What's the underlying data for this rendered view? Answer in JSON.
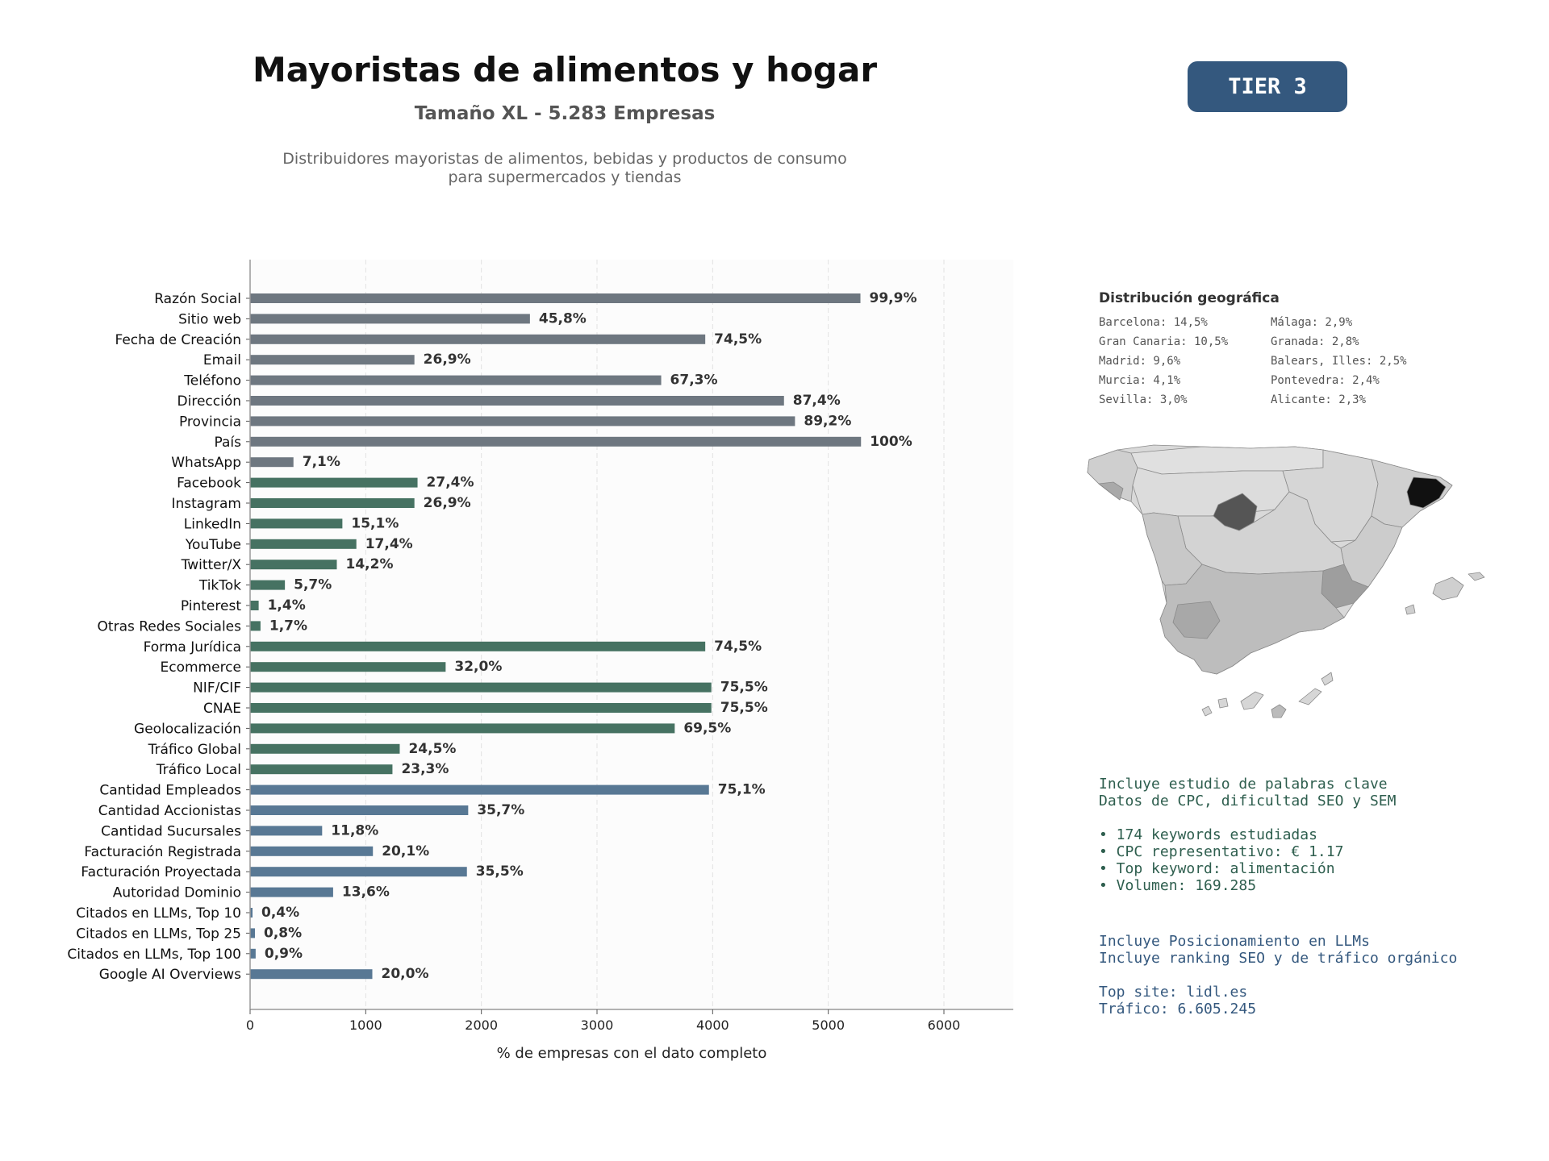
{
  "header": {
    "title": "Mayoristas de alimentos y hogar",
    "subtitle": "Tamaño XL - 5.283 Empresas",
    "description_line1": "Distribuidores mayoristas de alimentos, bebidas y productos de consumo",
    "description_line2": "para supermercados y tiendas",
    "tier_badge": "TIER 3"
  },
  "colors": {
    "gray_bar": "#6e7780",
    "green_bar": "#467262",
    "blue_bar": "#587894",
    "badge_bg": "#34587e",
    "green_text": "#2e5e4e",
    "blue_text": "#34587e"
  },
  "chart_data": {
    "type": "bar",
    "orientation": "horizontal",
    "xlabel": "% de empresas con el dato completo",
    "ylabel": "",
    "xlim": [
      0,
      6600
    ],
    "xticks": [
      0,
      1000,
      2000,
      3000,
      4000,
      5000,
      6000
    ],
    "grid": "vertical dashed",
    "bars": [
      {
        "label": "Razón Social",
        "value": 5278,
        "pct": "99,9%",
        "group": "gray"
      },
      {
        "label": "Sitio web",
        "value": 2420,
        "pct": "45,8%",
        "group": "gray"
      },
      {
        "label": "Fecha de Creación",
        "value": 3936,
        "pct": "74,5%",
        "group": "gray"
      },
      {
        "label": "Email",
        "value": 1421,
        "pct": "26,9%",
        "group": "gray"
      },
      {
        "label": "Teléfono",
        "value": 3555,
        "pct": "67,3%",
        "group": "gray"
      },
      {
        "label": "Dirección",
        "value": 4617,
        "pct": "87,4%",
        "group": "gray"
      },
      {
        "label": "Provincia",
        "value": 4712,
        "pct": "89,2%",
        "group": "gray"
      },
      {
        "label": "País",
        "value": 5283,
        "pct": "100%",
        "group": "gray"
      },
      {
        "label": "WhatsApp",
        "value": 375,
        "pct": "7,1%",
        "group": "gray"
      },
      {
        "label": "Facebook",
        "value": 1448,
        "pct": "27,4%",
        "group": "green"
      },
      {
        "label": "Instagram",
        "value": 1421,
        "pct": "26,9%",
        "group": "green"
      },
      {
        "label": "LinkedIn",
        "value": 798,
        "pct": "15,1%",
        "group": "green"
      },
      {
        "label": "YouTube",
        "value": 919,
        "pct": "17,4%",
        "group": "green"
      },
      {
        "label": "Twitter/X",
        "value": 750,
        "pct": "14,2%",
        "group": "green"
      },
      {
        "label": "TikTok",
        "value": 301,
        "pct": "5,7%",
        "group": "green"
      },
      {
        "label": "Pinterest",
        "value": 74,
        "pct": "1,4%",
        "group": "green"
      },
      {
        "label": "Otras Redes Sociales",
        "value": 90,
        "pct": "1,7%",
        "group": "green"
      },
      {
        "label": "Forma Jurídica",
        "value": 3936,
        "pct": "74,5%",
        "group": "green"
      },
      {
        "label": "Ecommerce",
        "value": 1691,
        "pct": "32,0%",
        "group": "green"
      },
      {
        "label": "NIF/CIF",
        "value": 3989,
        "pct": "75,5%",
        "group": "green"
      },
      {
        "label": "CNAE",
        "value": 3989,
        "pct": "75,5%",
        "group": "green"
      },
      {
        "label": "Geolocalización",
        "value": 3672,
        "pct": "69,5%",
        "group": "green"
      },
      {
        "label": "Tráfico Global",
        "value": 1294,
        "pct": "24,5%",
        "group": "green"
      },
      {
        "label": "Tráfico Local",
        "value": 1231,
        "pct": "23,3%",
        "group": "green"
      },
      {
        "label": "Cantidad Empleados",
        "value": 3968,
        "pct": "75,1%",
        "group": "blue"
      },
      {
        "label": "Cantidad Accionistas",
        "value": 1886,
        "pct": "35,7%",
        "group": "blue"
      },
      {
        "label": "Cantidad Sucursales",
        "value": 623,
        "pct": "11,8%",
        "group": "blue"
      },
      {
        "label": "Facturación Registrada",
        "value": 1062,
        "pct": "20,1%",
        "group": "blue"
      },
      {
        "label": "Facturación Proyectada",
        "value": 1875,
        "pct": "35,5%",
        "group": "blue"
      },
      {
        "label": "Autoridad Dominio",
        "value": 718,
        "pct": "13,6%",
        "group": "blue"
      },
      {
        "label": "Citados en LLMs, Top 10",
        "value": 21,
        "pct": "0,4%",
        "group": "blue"
      },
      {
        "label": "Citados en LLMs, Top 25",
        "value": 42,
        "pct": "0,8%",
        "group": "blue"
      },
      {
        "label": "Citados en LLMs, Top 100",
        "value": 48,
        "pct": "0,9%",
        "group": "blue"
      },
      {
        "label": "Google AI Overviews",
        "value": 1057,
        "pct": "20,0%",
        "group": "blue"
      }
    ]
  },
  "geo": {
    "title": "Distribución geográfica",
    "col1": [
      "Barcelona: 14,5%",
      "Gran Canaria: 10,5%",
      "Madrid: 9,6%",
      "Murcia: 4,1%",
      "Sevilla: 3,0%"
    ],
    "col2": [
      "Málaga: 2,9%",
      "Granada: 2,8%",
      "Balears, Illes: 2,5%",
      "Pontevedra: 2,4%",
      "Alicante: 2,3%"
    ]
  },
  "keywords": {
    "line1": "Incluye estudio de palabras clave",
    "line2": "Datos de CPC, dificultad SEO y SEM",
    "bullet1": "• 174 keywords estudiadas",
    "bullet2": "• CPC representativo: € 1.17",
    "bullet3": "• Top keyword: alimentación",
    "bullet4": "• Volumen: 169.285"
  },
  "llm": {
    "line1": "Incluye Posicionamiento en LLMs",
    "line2": "Incluye ranking SEO y de tráfico orgánico",
    "top_site": "Top site: lidl.es",
    "traffic": "Tráfico: 6.605.245"
  }
}
